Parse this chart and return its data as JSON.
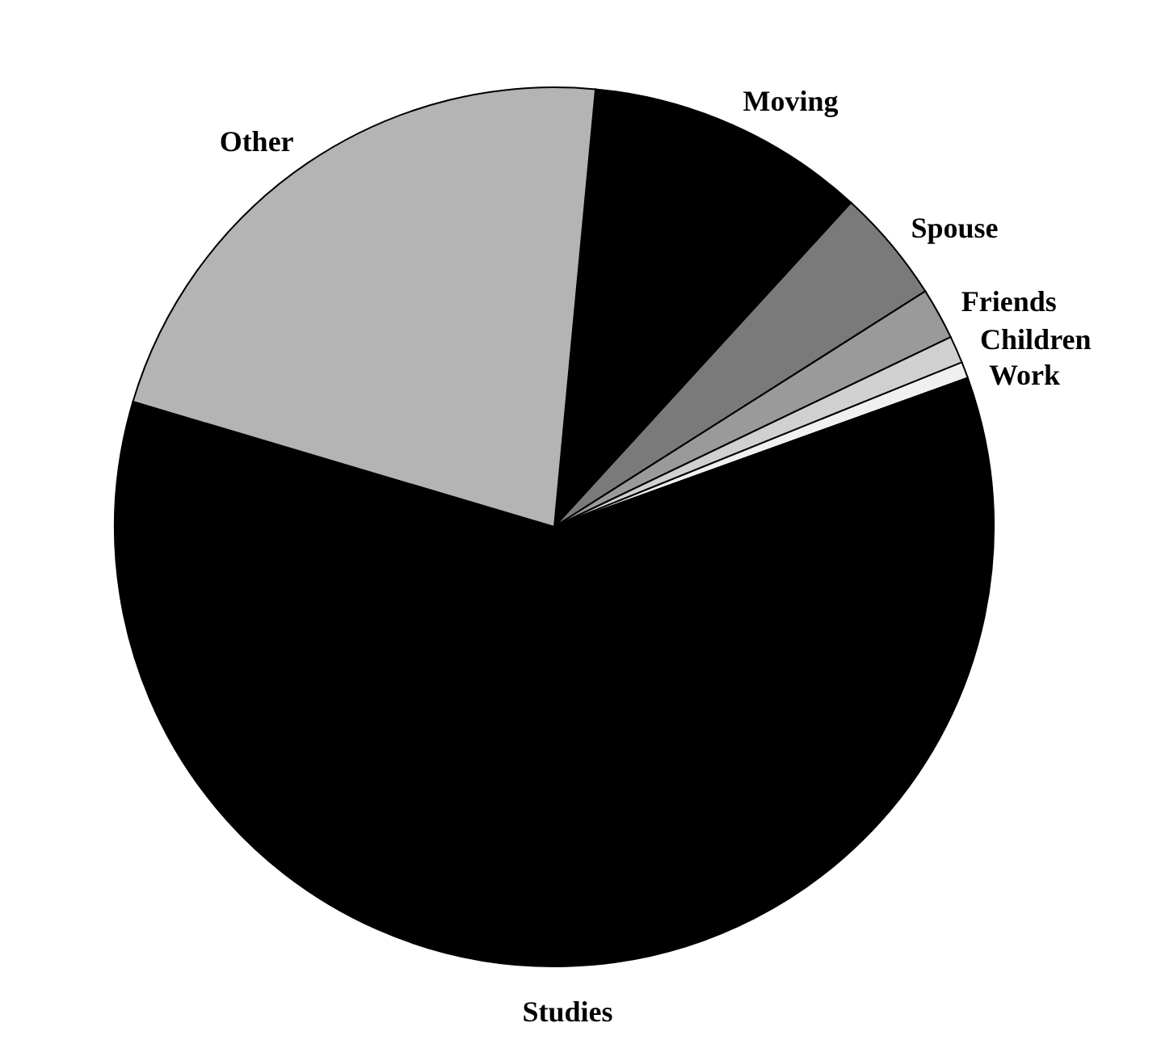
{
  "chart_data": {
    "type": "pie",
    "categories": [
      "Moving",
      "Spouse",
      "Friends",
      "Children",
      "Work",
      "Studies",
      "Other"
    ],
    "values": [
      10.3,
      4.2,
      1.9,
      1.0,
      0.6,
      60.1,
      21.9
    ],
    "colors": [
      "#000000",
      "#7a7a7a",
      "#9a9a9a",
      "#d0d0d0",
      "#f0f0f0",
      "#000000",
      "#b4b4b4"
    ]
  }
}
